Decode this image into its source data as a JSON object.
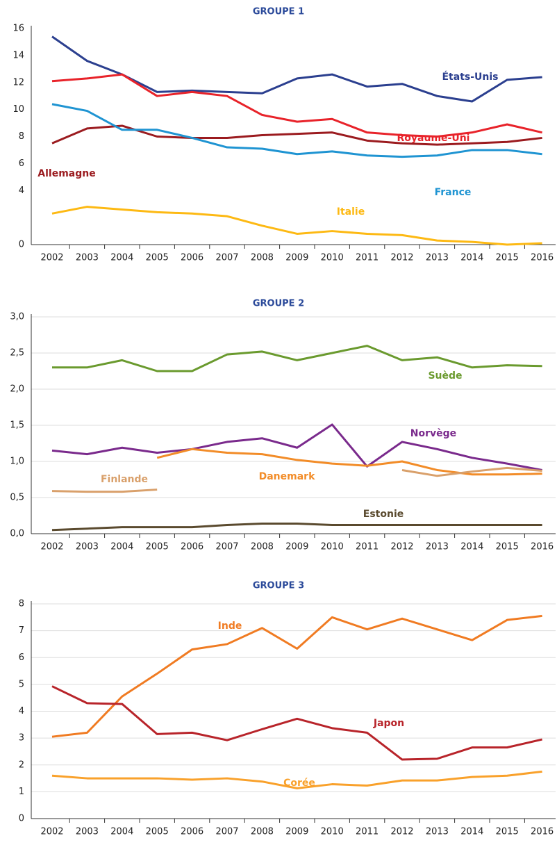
{
  "chart_data": [
    {
      "type": "line",
      "title": "GROUPE 1",
      "categories": [
        "2002",
        "2003",
        "2004",
        "2005",
        "2006",
        "2007",
        "2008",
        "2009",
        "2010",
        "2011",
        "2012",
        "2013",
        "2014",
        "2015",
        "2016"
      ],
      "ylim": [
        0,
        16
      ],
      "yticks": [
        0,
        4,
        6,
        8,
        10,
        12,
        14,
        16
      ],
      "grid": false,
      "series": [
        {
          "name": "États-Unis",
          "color": "#2b3f8f",
          "values": [
            15.4,
            13.6,
            12.6,
            11.3,
            11.4,
            11.3,
            11.2,
            12.3,
            12.6,
            11.7,
            11.9,
            11.0,
            10.6,
            12.2,
            12.4
          ]
        },
        {
          "name": "Royaume-Uni",
          "color": "#e8232a",
          "values": [
            12.1,
            12.3,
            12.6,
            11.0,
            11.3,
            11.0,
            9.6,
            9.1,
            9.3,
            8.3,
            8.1,
            8.0,
            8.3,
            8.9,
            8.3
          ]
        },
        {
          "name": "Allemagne",
          "color": "#9b1b1f",
          "values": [
            7.5,
            8.6,
            8.8,
            8.0,
            7.9,
            7.9,
            8.1,
            8.2,
            8.3,
            7.7,
            7.5,
            7.4,
            7.5,
            7.6,
            7.9
          ]
        },
        {
          "name": "France",
          "color": "#1f94d2",
          "values": [
            10.4,
            9.9,
            8.5,
            8.5,
            7.9,
            7.2,
            7.1,
            6.7,
            6.9,
            6.6,
            6.5,
            6.6,
            7.0,
            7.0,
            6.7
          ]
        },
        {
          "name": "Italie",
          "color": "#fdb913",
          "values": [
            2.3,
            2.8,
            2.6,
            2.4,
            2.3,
            2.1,
            1.4,
            0.8,
            1.0,
            0.8,
            0.7,
            0.3,
            0.2,
            0,
            0.1
          ]
        }
      ]
    },
    {
      "type": "line",
      "title": "GROUPE 2",
      "categories": [
        "2002",
        "2003",
        "2004",
        "2005",
        "2006",
        "2007",
        "2008",
        "2009",
        "2010",
        "2011",
        "2012",
        "2013",
        "2014",
        "2015",
        "2016"
      ],
      "ylim": [
        0,
        3
      ],
      "yticks": [
        {
          "value": 0,
          "label": "0,0"
        },
        {
          "value": 0.5,
          "label": "0,5"
        },
        {
          "value": 1,
          "label": "1,0"
        },
        {
          "value": 1.5,
          "label": "1,5"
        },
        {
          "value": 2,
          "label": "2,0"
        },
        {
          "value": 2.5,
          "label": "2,5"
        },
        {
          "value": 3,
          "label": "3,0"
        }
      ],
      "grid": true,
      "series": [
        {
          "name": "Suède",
          "color": "#6a9a2e",
          "values": [
            2.3,
            2.3,
            2.4,
            2.25,
            2.25,
            2.48,
            2.52,
            2.4,
            2.5,
            2.6,
            2.4,
            2.44,
            2.3,
            2.33,
            2.32
          ]
        },
        {
          "name": "Norvège",
          "color": "#7a2a8c",
          "values": [
            1.15,
            1.1,
            1.19,
            1.12,
            1.17,
            1.27,
            1.32,
            1.19,
            1.51,
            0.93,
            1.27,
            1.17,
            1.05,
            0.97,
            0.88
          ]
        },
        {
          "name": "Danemark",
          "color": "#f28c28",
          "values": [
            null,
            null,
            null,
            1.05,
            1.17,
            1.12,
            1.1,
            1.02,
            0.97,
            0.94,
            1.0,
            0.88,
            0.82,
            0.82,
            0.83
          ]
        },
        {
          "name": "Finlande",
          "color": "#d9a06b",
          "values": [
            0.59,
            0.58,
            0.58,
            0.61,
            null,
            null,
            null,
            null,
            null,
            null,
            0.88,
            0.8,
            0.86,
            0.91,
            0.87
          ]
        },
        {
          "name": "Estonie",
          "color": "#5a4a2e",
          "values": [
            0.05,
            0.07,
            0.09,
            0.09,
            0.09,
            0.12,
            0.14,
            0.14,
            0.12,
            0.12,
            0.12,
            0.12,
            0.12,
            0.12,
            0.12
          ]
        }
      ]
    },
    {
      "type": "line",
      "title": "GROUPE 3",
      "categories": [
        "2002",
        "2003",
        "2004",
        "2005",
        "2006",
        "2007",
        "2008",
        "2009",
        "2010",
        "2011",
        "2012",
        "2013",
        "2014",
        "2015",
        "2016"
      ],
      "ylim": [
        0,
        8
      ],
      "yticks": [
        0,
        1,
        2,
        3,
        4,
        5,
        6,
        7,
        8
      ],
      "grid": true,
      "series": [
        {
          "name": "Inde",
          "color": "#f07b22",
          "values": [
            3.05,
            3.2,
            4.55,
            5.4,
            6.3,
            6.5,
            7.1,
            6.33,
            7.5,
            7.05,
            7.45,
            7.05,
            6.65,
            7.4,
            7.55
          ]
        },
        {
          "name": "Japon",
          "color": "#b8242a",
          "values": [
            4.93,
            4.3,
            4.27,
            3.15,
            3.2,
            2.92,
            3.33,
            3.72,
            3.37,
            3.2,
            2.2,
            2.23,
            2.65,
            2.65,
            2.95
          ]
        },
        {
          "name": "Corée",
          "color": "#f9a12b",
          "values": [
            1.6,
            1.5,
            1.5,
            1.5,
            1.45,
            1.5,
            1.38,
            1.13,
            1.28,
            1.23,
            1.42,
            1.42,
            1.55,
            1.6,
            1.75
          ]
        }
      ]
    }
  ]
}
